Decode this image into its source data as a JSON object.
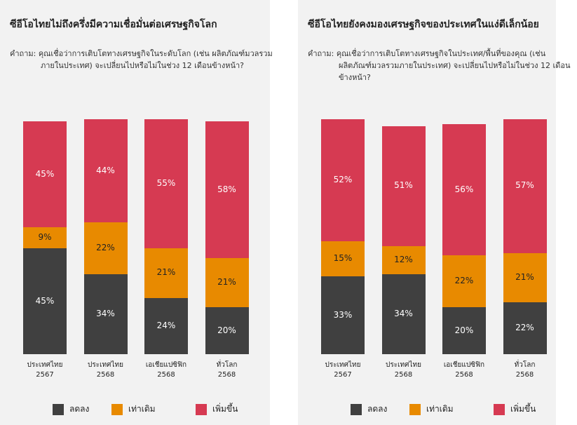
{
  "chart_data": [
    {
      "type": "stacked_bar",
      "title": "ซีอีโอไทยไม่ถึงครึ่งมีความเชื่อมั่นต่อเศรษฐกิจโลก",
      "subtitle": "คำถาม: คุณเชื่อว่าการเติบโตทางเศรษฐกิจในระดับโลก (เช่น ผลิตภัณฑ์มวลรวมภายในประเทศ) จะเปลี่ยนไปหรือไม่ในช่วง 12 เดือนข้างหน้า?",
      "categories": [
        "ประเทศไทย\n2567",
        "ประเทศไทย\n2568",
        "เอเชียแปซิฟิก\n2568",
        "ทั่วโลก\n2568"
      ],
      "series": [
        {
          "name": "ลดลง",
          "color": "#404040",
          "values": [
            45,
            34,
            24,
            20
          ],
          "value_labels": [
            "45%",
            "34%",
            "24%",
            "20%"
          ]
        },
        {
          "name": "เท่าเดิม",
          "color": "#e88a00",
          "values": [
            9,
            22,
            21,
            21
          ],
          "value_labels": [
            "9%",
            "22%",
            "21%",
            "21%"
          ]
        },
        {
          "name": "เพิ่มขึ้น",
          "color": "#d63a52",
          "values": [
            45,
            44,
            55,
            58
          ],
          "value_labels": [
            "45%",
            "44%",
            "55%",
            "58%"
          ]
        }
      ]
    },
    {
      "type": "stacked_bar",
      "title": "ซีอีโอไทยยังคงมองเศรษฐกิจของประเทศในแง่ดีเล็กน้อย",
      "subtitle": "คำถาม: คุณเชื่อว่าการเติบโตทางเศรษฐกิจในประเทศ/พื้นที่ของคุณ (เช่น ผลิตภัณฑ์มวลรวมภายในประเทศ) จะเปลี่ยนไปหรือไม่ในช่วง 12 เดือนข้างหน้า?",
      "categories": [
        "ประเทศไทย\n2567",
        "ประเทศไทย\n2568",
        "เอเชียแปซิฟิก\n2568",
        "ทั่วโลก\n2568"
      ],
      "series": [
        {
          "name": "ลดลง",
          "color": "#404040",
          "values": [
            33,
            34,
            20,
            22
          ],
          "value_labels": [
            "33%",
            "34%",
            "20%",
            "22%"
          ]
        },
        {
          "name": "เท่าเดิม",
          "color": "#e88a00",
          "values": [
            15,
            12,
            22,
            21
          ],
          "value_labels": [
            "15%",
            "12%",
            "22%",
            "21%"
          ]
        },
        {
          "name": "เพิ่มขึ้น",
          "color": "#d63a52",
          "values": [
            52,
            51,
            56,
            57
          ],
          "value_labels": [
            "52%",
            "51%",
            "56%",
            "57%"
          ]
        }
      ]
    }
  ]
}
